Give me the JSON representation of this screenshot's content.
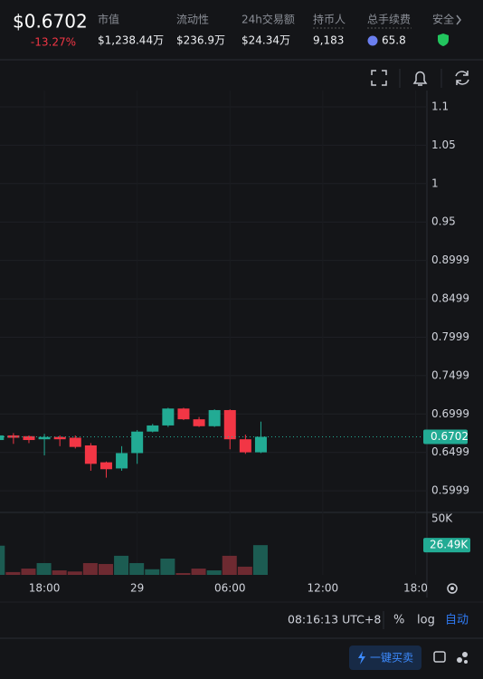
{
  "header": {
    "price": "$0.6702",
    "change": "-13.27%",
    "stats": [
      {
        "label": "市值",
        "value": "$1,238.44万"
      },
      {
        "label": "流动性",
        "value": "$236.9万"
      },
      {
        "label": "24h交易额",
        "value": "$24.34万"
      },
      {
        "label": "持币人",
        "value": "9,183"
      },
      {
        "label": "总手续费",
        "value": "65.8"
      },
      {
        "label": "安全"
      }
    ]
  },
  "chart_data": {
    "type": "candlestick",
    "up_color": "#22ab94",
    "down_color": "#f23645",
    "x": [
      15,
      16,
      17,
      18,
      19,
      20,
      21,
      22,
      23,
      24,
      25,
      26,
      27,
      28,
      29,
      30,
      31,
      32
    ],
    "open": [
      0.666,
      0.672,
      0.671,
      0.667,
      0.67,
      0.669,
      0.659,
      0.637,
      0.629,
      0.649,
      0.677,
      0.685,
      0.707,
      0.693,
      0.684,
      0.705,
      0.667,
      0.65
    ],
    "high": [
      0.673,
      0.675,
      0.672,
      0.674,
      0.672,
      0.672,
      0.662,
      0.638,
      0.658,
      0.679,
      0.687,
      0.708,
      0.708,
      0.696,
      0.706,
      0.706,
      0.673,
      0.69
    ],
    "low": [
      0.664,
      0.661,
      0.662,
      0.646,
      0.658,
      0.655,
      0.626,
      0.617,
      0.626,
      0.635,
      0.676,
      0.683,
      0.692,
      0.683,
      0.683,
      0.654,
      0.648,
      0.649
    ],
    "close": [
      0.672,
      0.669,
      0.666,
      0.67,
      0.667,
      0.657,
      0.635,
      0.628,
      0.649,
      0.677,
      0.685,
      0.707,
      0.693,
      0.684,
      0.705,
      0.667,
      0.65,
      0.6702
    ],
    "xlim": [
      15.13,
      42.5
    ],
    "xticks": [
      {
        "value": 18,
        "label": "18:00"
      },
      {
        "value": 24,
        "label": "29"
      },
      {
        "value": 30,
        "label": "06:00"
      },
      {
        "value": 36,
        "label": "12:00"
      },
      {
        "value": 42,
        "label": "18:0"
      }
    ],
    "ylim": [
      0.5729,
      1.1212
    ],
    "yticks": [
      1.1,
      1.05,
      1,
      0.95,
      0.8999,
      0.8499,
      0.7999,
      0.7499,
      0.6999,
      0.6499,
      0.5999
    ],
    "grid": true,
    "volume": {
      "values": [
        26000,
        2500,
        5600,
        10500,
        4000,
        3000,
        10500,
        9700,
        17000,
        10500,
        5000,
        14500,
        1600,
        5600,
        4000,
        17000,
        7300,
        26490
      ],
      "up_color": "#1c5c52",
      "down_color": "#6e2a31",
      "ylim": [
        0,
        54800
      ],
      "yticks": [
        {
          "value": 50000,
          "label": "50K"
        }
      ],
      "last_value_label": "26.49K"
    }
  },
  "footer": {
    "time": "08:16:13 UTC+8",
    "percent": "%",
    "log": "log",
    "auto": "自动",
    "button": "一键买卖"
  }
}
